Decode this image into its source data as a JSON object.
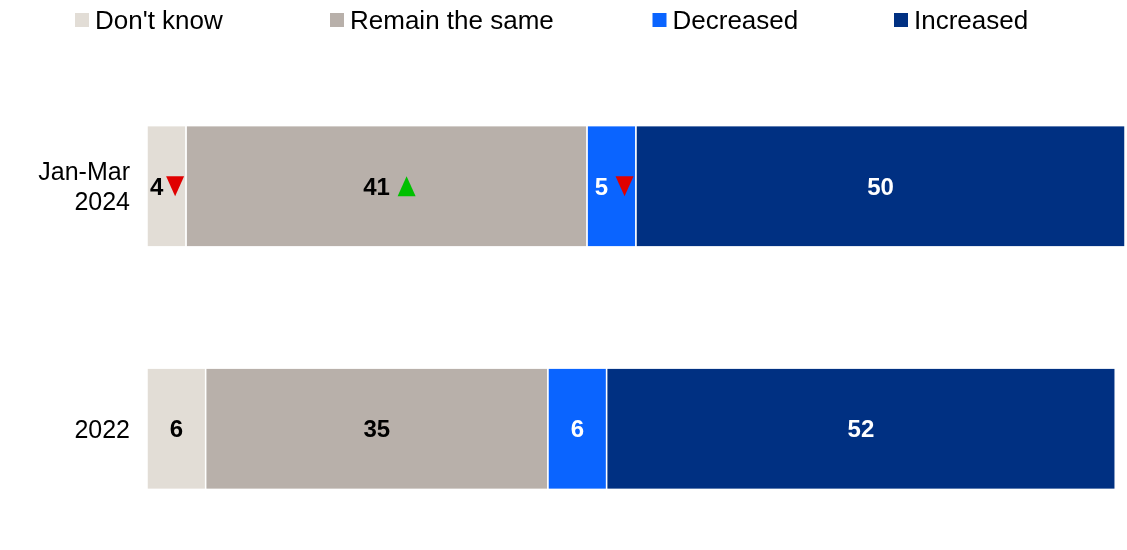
{
  "chart_data": {
    "type": "bar",
    "orientation": "horizontal",
    "stacked": true,
    "categories": [
      "Jan-Mar 2024",
      "2022"
    ],
    "series": [
      {
        "name": "Don't know",
        "color": "#e2ddd6",
        "values": [
          4,
          6
        ]
      },
      {
        "name": "Remain the same",
        "color": "#b8b0aa",
        "values": [
          41,
          35
        ]
      },
      {
        "name": "Decreased",
        "color": "#0a64ff",
        "values": [
          5,
          6
        ]
      },
      {
        "name": "Increased",
        "color": "#003082",
        "values": [
          50,
          52
        ]
      }
    ],
    "xlim": [
      0,
      100
    ],
    "data_labels": true,
    "legend": "top",
    "tick_labels": "y"
  }
}
